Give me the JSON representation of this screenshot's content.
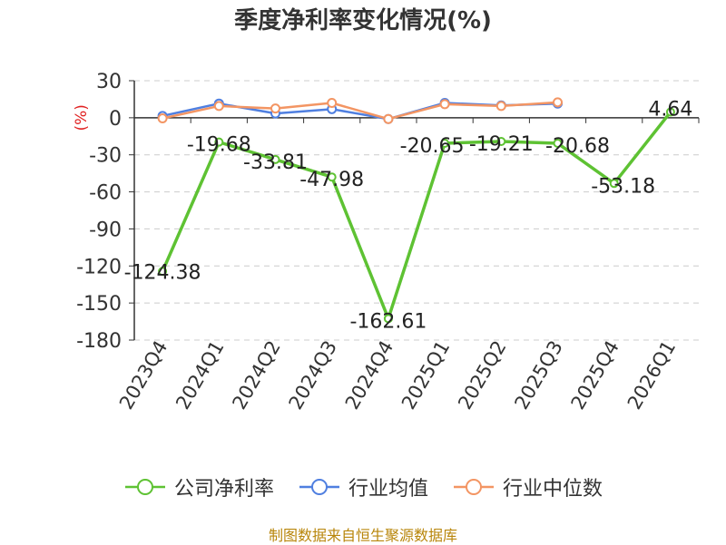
{
  "chart_data": {
    "type": "line",
    "title": "季度净利率变化情况(%)",
    "ylabel": "(%)",
    "categories": [
      "2023Q4",
      "2024Q1",
      "2024Q2",
      "2024Q3",
      "2024Q4",
      "2025Q1",
      "2025Q2",
      "2025Q3",
      "2025Q4",
      "2026Q1"
    ],
    "ylim": [
      -180,
      30
    ],
    "yticks": [
      "30",
      "0",
      "-30",
      "-60",
      "-90",
      "-120",
      "-150",
      "-180"
    ],
    "grid": true,
    "legend_position": "bottom",
    "series": [
      {
        "name": "公司净利率",
        "color": "#5ec233",
        "values": [
          -124.38,
          -19.68,
          -33.81,
          -47.98,
          -162.61,
          -20.65,
          -19.21,
          -20.68,
          -53.18,
          4.64
        ],
        "labels": [
          "-124.38",
          "-19.68",
          "-33.81",
          "-47.98",
          "-162.61",
          "-20.65",
          "-19.21",
          "-20.68",
          "-53.18",
          "4.64"
        ]
      },
      {
        "name": "行业均值",
        "color": "#4f7fe0",
        "values": [
          1.5,
          11.5,
          3.5,
          7,
          -1,
          12,
          10,
          11.5,
          null,
          null
        ]
      },
      {
        "name": "行业中位数",
        "color": "#f39563",
        "values": [
          -0.5,
          9.5,
          7.5,
          12,
          -1,
          11,
          9.5,
          12.5,
          null,
          null
        ]
      }
    ]
  },
  "footer": {
    "source": "制图数据来自恒生聚源数据库"
  }
}
